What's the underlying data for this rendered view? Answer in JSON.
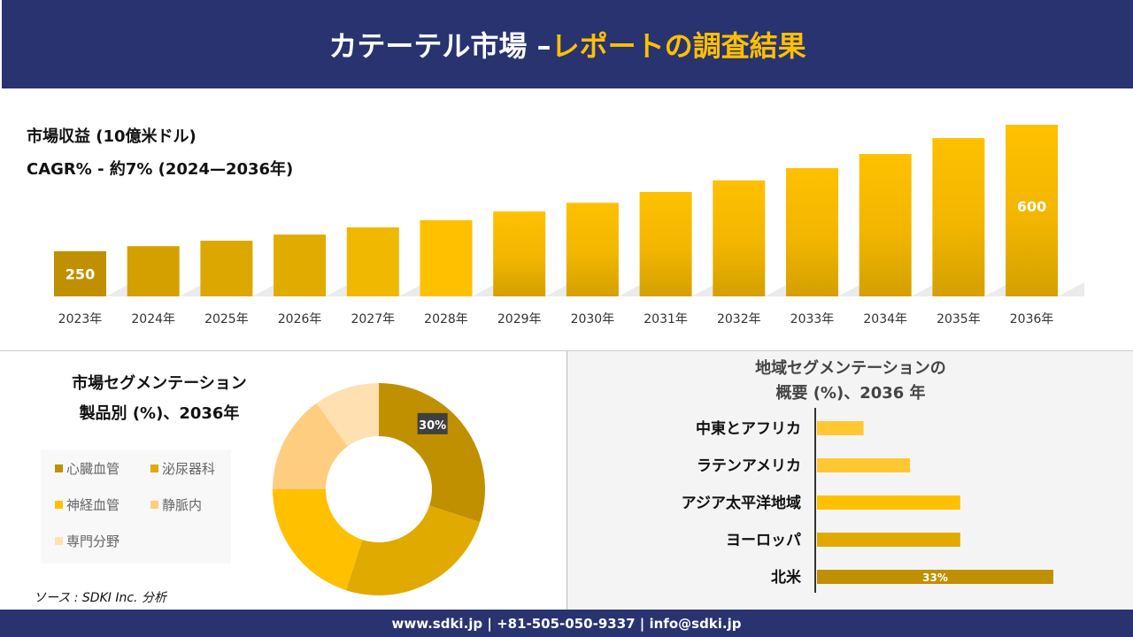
{
  "header": {
    "title_white": "カテーテル市場 –",
    "title_yellow": "レポートの調査結果"
  },
  "revenue": {
    "subtitle": "市場収益 (10億米ドル)",
    "cagr": "CAGR% - 約7% (2024—2036年)"
  },
  "chart_data": [
    {
      "type": "bar",
      "categories": [
        "2023年",
        "2024年",
        "2025年",
        "2026年",
        "2027年",
        "2028年",
        "2029年",
        "2030年",
        "2031年",
        "2032年",
        "2033年",
        "2034年",
        "2035年",
        "2036年"
      ],
      "values": [
        250,
        264,
        279,
        296,
        316,
        336,
        360,
        384,
        414,
        446,
        480,
        519,
        563,
        600
      ],
      "data_labels": {
        "0": "250",
        "13": "600"
      },
      "ylim": [
        125,
        620
      ],
      "grid": false,
      "colors": [
        "#c09000",
        "#d4a000",
        "#dca800",
        "#e2ab00",
        "#f0b800",
        "#ffc000",
        "#f8bc00",
        "#f8bc00",
        "#f8bc00",
        "#f8bc00",
        "#f8bc00",
        "#f8bc00",
        "#f8bc00",
        "#f8bc00"
      ]
    },
    {
      "type": "pie",
      "title": "市場セグメンテーション 製品別 (%)、2036年",
      "title_lines": [
        "市場セグメンテーション",
        "製品別 (%)、2036年"
      ],
      "categories": [
        "心臓血管",
        "泌尿器科",
        "神経血管",
        "静脈内",
        "専門分野"
      ],
      "values": [
        30,
        25,
        20,
        15,
        10
      ],
      "data_labels": {
        "0": "30%"
      },
      "colors": [
        "#c09000",
        "#e0aa00",
        "#ffc000",
        "#ffcd80",
        "#ffe0b0"
      ],
      "legend": "left"
    },
    {
      "type": "bar",
      "orientation": "horizontal",
      "title_lines": [
        "地域セグメンテーションの",
        "概要 (%)、2036 年"
      ],
      "categories": [
        "中東とアフリカ",
        "ラテンアメリカ",
        "アジア太平洋地域",
        "ヨーロッパ",
        "北米"
      ],
      "values": [
        6.5,
        13,
        20,
        20,
        33
      ],
      "data_labels": {
        "4": "33%"
      },
      "colors": [
        "#ffc832",
        "#ffc832",
        "#ffc000",
        "#e0aa00",
        "#c09000"
      ]
    }
  ],
  "source": "ソース : SDKI Inc. 分析",
  "footer": "www.sdki.jp | +81-505-050-9337 | info@sdki.jp"
}
